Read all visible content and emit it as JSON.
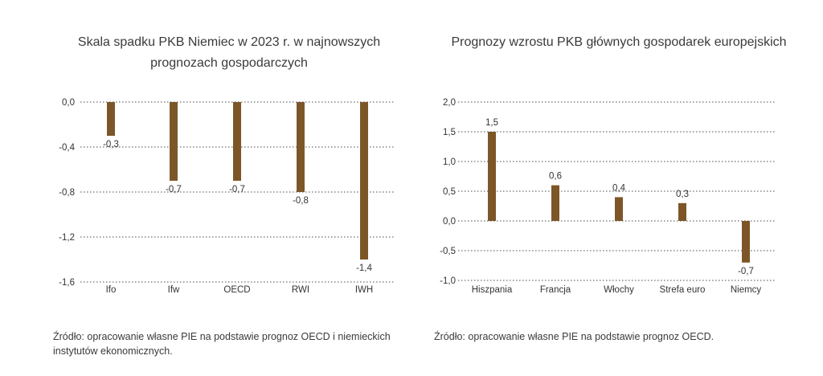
{
  "colors": {
    "bar": "#7d5628",
    "grid": "#4a4a4a",
    "text": "#333333"
  },
  "chart_data": [
    {
      "type": "bar",
      "title": "Skala spadku PKB Niemiec w 2023 r. w najnowszych prognozach gospodarczych",
      "categories": [
        "Ifo",
        "Ifw",
        "OECD",
        "RWI",
        "IWH"
      ],
      "values": [
        -0.3,
        -0.7,
        -0.7,
        -0.8,
        -1.4
      ],
      "value_labels": [
        "-0,3",
        "-0,7",
        "-0,7",
        "-0,8",
        "-1,4"
      ],
      "y_ticks": [
        0.0,
        -0.4,
        -0.8,
        -1.2,
        -1.6
      ],
      "y_tick_labels": [
        "0,0",
        "-0,4",
        "-0,8",
        "-1,2",
        "-1,6"
      ],
      "ylim": [
        -1.6,
        0.0
      ],
      "source": "Źródło: opracowanie własne PIE na podstawie prognoz OECD i niemieckich instytutów ekonomicznych."
    },
    {
      "type": "bar",
      "title": "Prognozy wzrostu PKB głównych gospodarek europejskich",
      "categories": [
        "Hiszpania",
        "Francja",
        "Włochy",
        "Strefa euro",
        "Niemcy"
      ],
      "values": [
        1.5,
        0.6,
        0.4,
        0.3,
        -0.7
      ],
      "value_labels": [
        "1,5",
        "0,6",
        "0,4",
        "0,3",
        "-0,7"
      ],
      "y_ticks": [
        2.0,
        1.5,
        1.0,
        0.5,
        0.0,
        -0.5,
        -1.0
      ],
      "y_tick_labels": [
        "2,0",
        "1,5",
        "1,0",
        "0,5",
        "0,0",
        "-0,5",
        "-1,0"
      ],
      "ylim": [
        -1.0,
        2.0
      ],
      "source": "Źródło: opracowanie własne PIE na podstawie prognoz OECD."
    }
  ]
}
